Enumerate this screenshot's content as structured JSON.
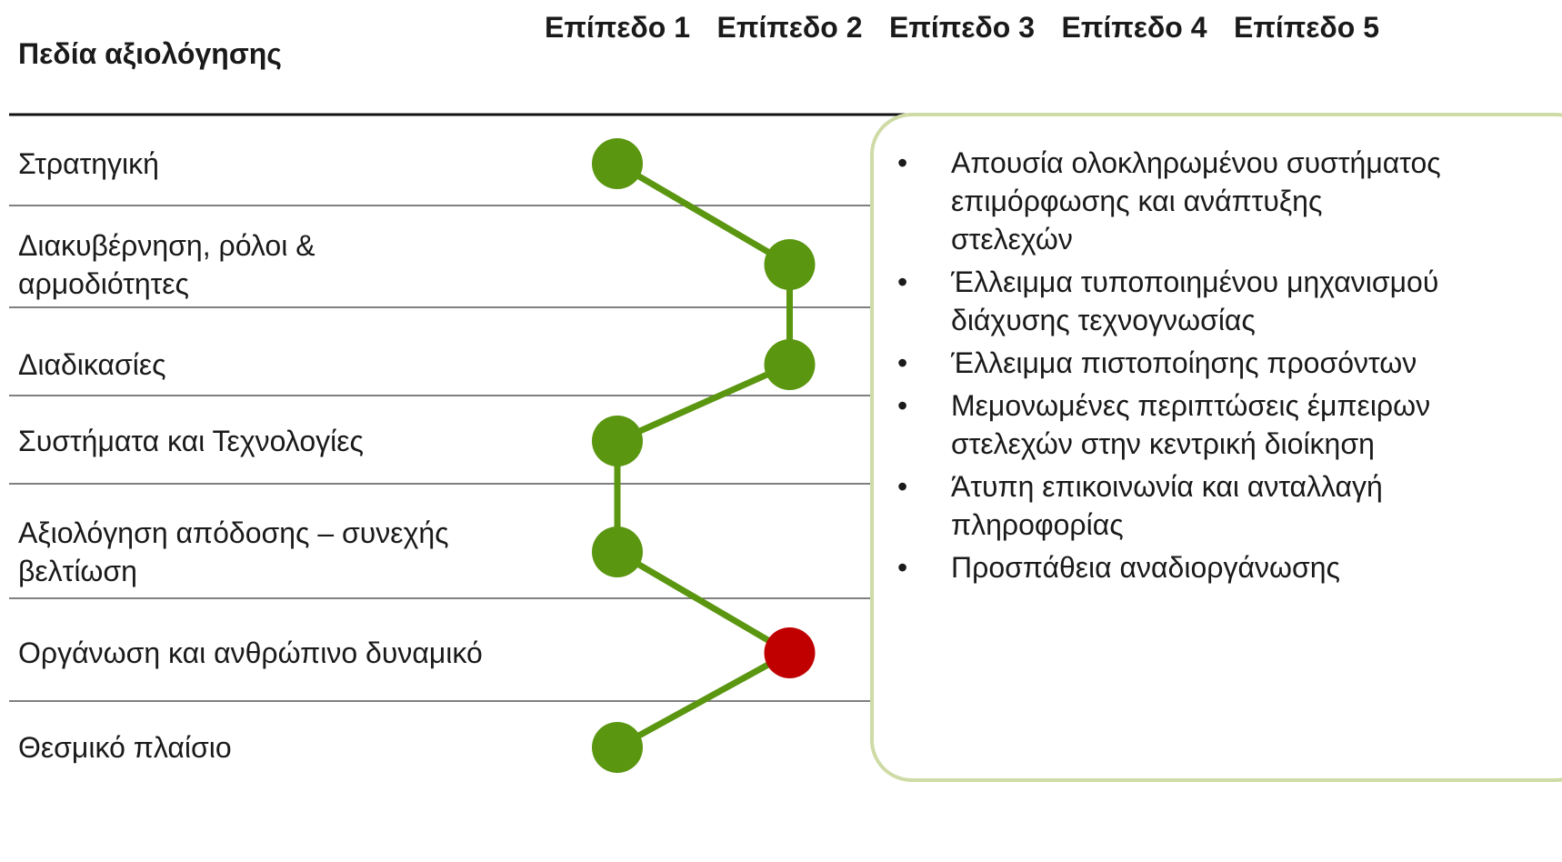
{
  "chart_data": {
    "type": "line",
    "title": "Πεδία αξιολόγησης",
    "categories": [
      "Στρατηγική",
      "Διακυβέρνηση, ρόλοι & αρμοδιότητες",
      "Διαδικασίες",
      "Συστήματα και Τεχνολογίες",
      "Αξιολόγηση απόδοσης – συνεχής βελτίωση",
      "Οργάνωση και ανθρώπινο δυναμικό",
      "Θεσμικό πλαίσιο"
    ],
    "values": [
      1,
      2,
      2,
      1,
      1,
      2,
      1
    ],
    "color": "#5a9610",
    "point_colors": [
      "#5a9610",
      "#5a9610",
      "#5a9610",
      "#5a9610",
      "#5a9610",
      "#c00000",
      "#5a9610"
    ],
    "xlim": [
      1,
      5
    ],
    "xticks": [
      {
        "value": 1,
        "label": "Επίπεδο 1"
      },
      {
        "value": 2,
        "label": "Επίπεδο 2"
      },
      {
        "value": 3,
        "label": "Επίπεδο 3"
      },
      {
        "value": 4,
        "label": "Επίπεδο 4"
      },
      {
        "value": 5,
        "label": "Επίπεδο 5"
      }
    ],
    "callout": [
      "Απουσία ολοκληρωμένου συστήματος επιμόρφωσης και ανάπτυξης στελεχών",
      "Έλλειμμα τυποποιημένου μηχανισμού διάχυσης τεχνογνωσίας",
      "Έλλειμμα πιστοποίησης προσόντων",
      "Μεμονωμένες περιπτώσεις έμπειρων στελεχών στην κεντρική διοίκηση",
      "Άτυπη επικοινωνία και ανταλλαγή πληροφορίας",
      "Προσπάθεια αναδιοργάνωσης"
    ]
  }
}
